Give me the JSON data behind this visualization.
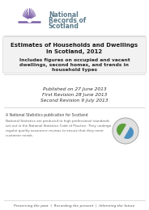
{
  "title_line1": "Estimates of Households and Dwellings",
  "title_line2": "in Scotland, 2012",
  "subtitle_line1": "Includes figures on occupied and vacant",
  "subtitle_line2": "dwellings, second homes, and trends in",
  "subtitle_line3": "household types",
  "pub_line1": "Published on 27 June 2013",
  "pub_line2": "First Revision 28 June 2013",
  "pub_line3": "Second Revision 9 July 2013",
  "ns_label": "A National Statistics publication for Scotland",
  "ns_body_line1": "National Statistics are produced to high professional standards",
  "ns_body_line2": "set out in the National Statistics Code of Practice. They undergo",
  "ns_body_line3": "regular quality assurance reviews to ensure that they meet",
  "ns_body_line4": "customer needs.",
  "footer": "Preserving the past  |  Recording the present  |  Informing the future",
  "logo_text_line1": "National",
  "logo_text_line2": "Records of",
  "logo_text_line3": "Scotland",
  "bg_color": "#ffffff",
  "title_box_bg": "#f2f2f2",
  "title_box_border": "#cccccc",
  "title_color": "#1a1a1a",
  "subtitle_color": "#2a2a2a",
  "pub_color": "#333333",
  "footer_color": "#555555",
  "logo_purple": "#7b5ea7",
  "logo_text_color": "#5a7a8a",
  "ns_label_color": "#444444",
  "ns_body_color": "#666666",
  "separator_color": "#cccccc"
}
